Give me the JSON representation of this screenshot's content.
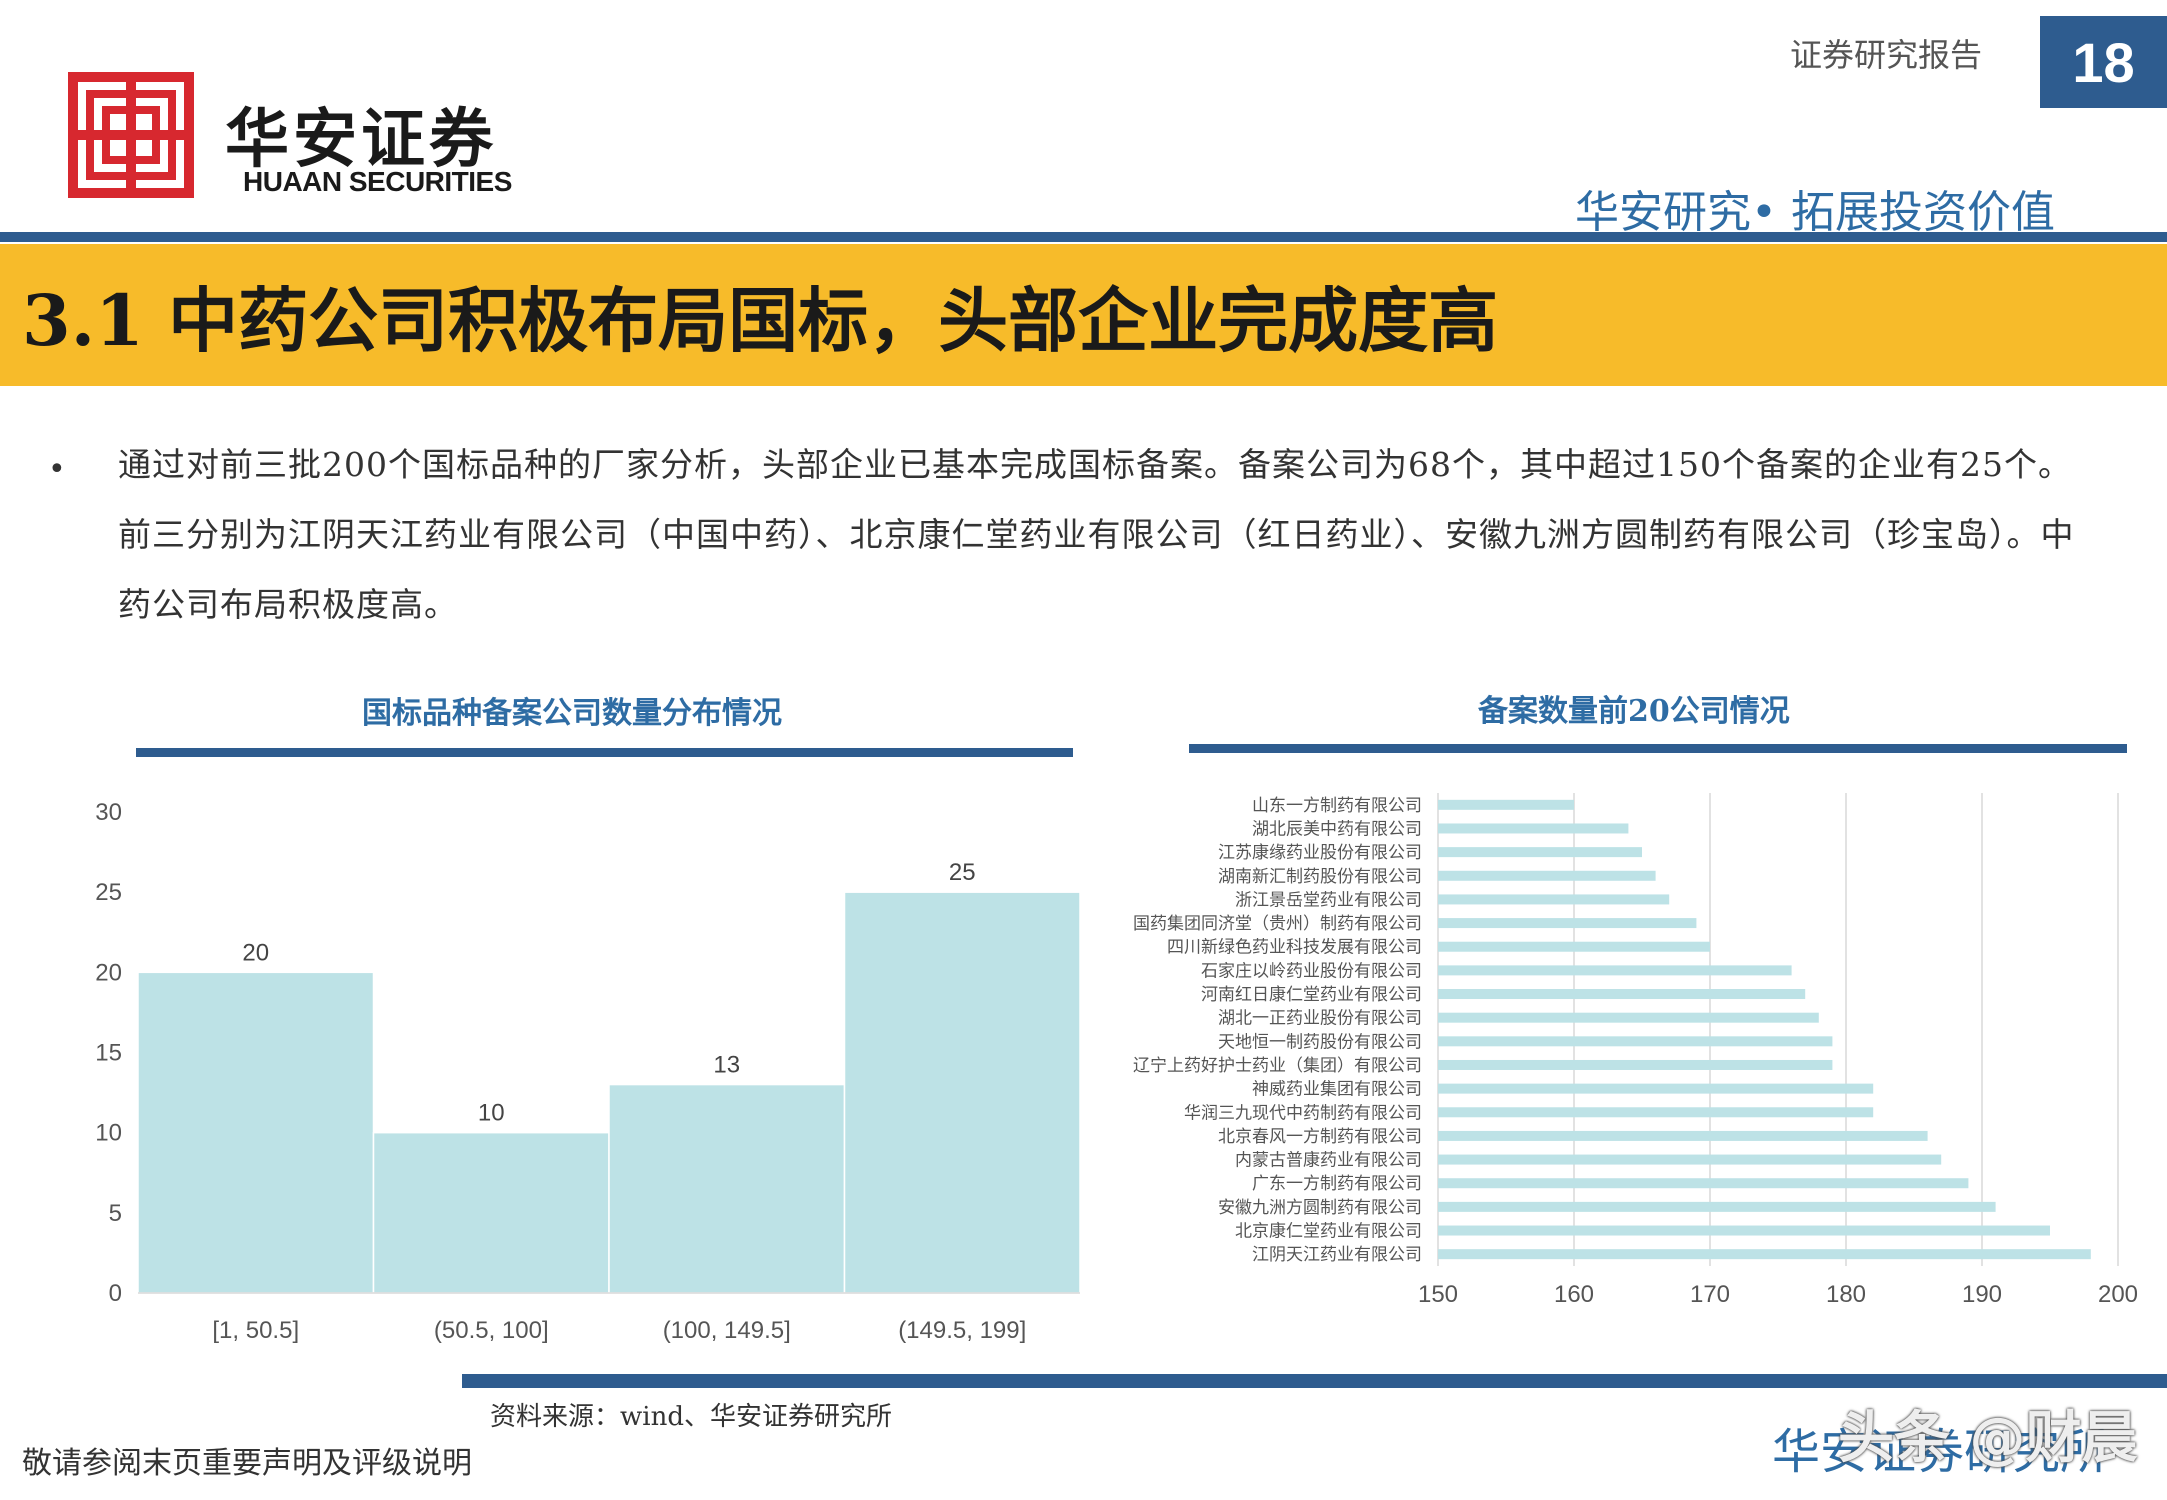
{
  "header": {
    "brand_cn": "华安证券",
    "brand_en": "HUAAN SECURITIES",
    "report_type": "证券研究报告",
    "page_number": "18",
    "tagline": "华安研究• 拓展投资价值"
  },
  "section_title": "3.1 中药公司积极布局国标，头部企业完成度高",
  "bullet": "通过对前三批200个国标品种的厂家分析，头部企业已基本完成国标备案。备案公司为68个，其中超过150个备案的企业有25个。前三分别为江阴天江药业有限公司（中国中药）、北京康仁堂药业有限公司（红日药业）、安徽九洲方圆制药有限公司（珍宝岛）。中药公司布局积极度高。",
  "chart_data": [
    {
      "type": "bar",
      "title": "国标品种备案公司数量分布情况",
      "categories": [
        "[1, 50.5]",
        "(50.5, 100]",
        "(100, 149.5]",
        "(149.5, 199]"
      ],
      "values": [
        20,
        10,
        13,
        25
      ],
      "ylim": [
        0,
        30
      ],
      "yticks": [
        0,
        5,
        10,
        15,
        20,
        25,
        30
      ],
      "color": "#bde2e6",
      "grid": false
    },
    {
      "type": "bar",
      "orientation": "horizontal",
      "title": "备案数量前20公司情况",
      "categories": [
        "山东一方制药有限公司",
        "湖北辰美中药有限公司",
        "江苏康缘药业股份有限公司",
        "湖南新汇制药股份有限公司",
        "浙江景岳堂药业有限公司",
        "国药集团同济堂（贵州）制药有限公司",
        "四川新绿色药业科技发展有限公司",
        "石家庄以岭药业股份有限公司",
        "河南红日康仁堂药业有限公司",
        "湖北一正药业股份有限公司",
        "天地恒一制药股份有限公司",
        "辽宁上药好护士药业（集团）有限公司",
        "神威药业集团有限公司",
        "华润三九现代中药制药有限公司",
        "北京春风一方制药有限公司",
        "内蒙古普康药业有限公司",
        "广东一方制药有限公司",
        "安徽九洲方圆制药有限公司",
        "北京康仁堂药业有限公司",
        "江阴天江药业有限公司"
      ],
      "values": [
        160,
        164,
        165,
        166,
        167,
        169,
        170,
        176,
        177,
        178,
        179,
        179,
        182,
        182,
        186,
        187,
        189,
        191,
        195,
        198
      ],
      "xlim": [
        150,
        200
      ],
      "xticks": [
        150,
        160,
        170,
        180,
        190,
        200
      ],
      "color": "#bde2e6",
      "grid": true
    }
  ],
  "source": "资料来源：wind、华安证券研究所",
  "footer_left": "敬请参阅末页重要声明及评级说明",
  "footer_right": "华安证券研究所",
  "watermark": "头条 @财晨"
}
